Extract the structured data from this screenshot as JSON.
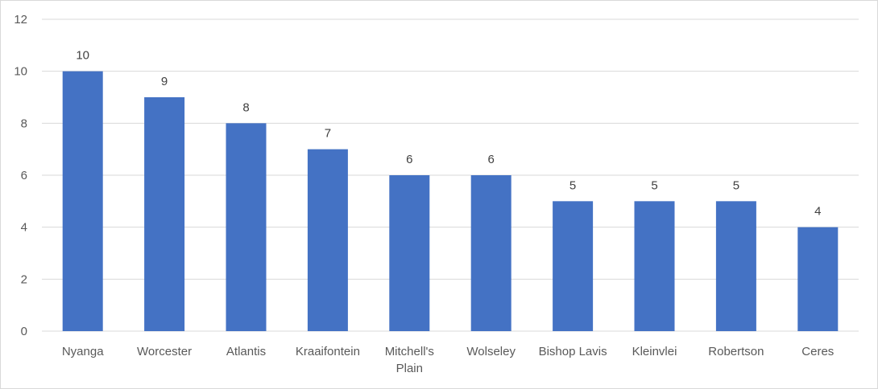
{
  "chart_data": {
    "type": "bar",
    "title": "",
    "xlabel": "",
    "ylabel": "",
    "categories": [
      "Nyanga",
      "Worcester",
      "Atlantis",
      "Kraaifontein",
      "Mitchell's Plain",
      "Wolseley",
      "Bishop Lavis",
      "Kleinvlei",
      "Robertson",
      "Ceres"
    ],
    "category_lines": [
      [
        "Nyanga"
      ],
      [
        "Worcester"
      ],
      [
        "Atlantis"
      ],
      [
        "Kraaifontein"
      ],
      [
        "Mitchell's",
        "Plain"
      ],
      [
        "Wolseley"
      ],
      [
        "Bishop Lavis"
      ],
      [
        "Kleinvlei"
      ],
      [
        "Robertson"
      ],
      [
        "Ceres"
      ]
    ],
    "values": [
      10,
      9,
      8,
      7,
      6,
      6,
      5,
      5,
      5,
      4
    ],
    "data_labels": [
      "10",
      "9",
      "8",
      "7",
      "6",
      "6",
      "5",
      "5",
      "5",
      "4"
    ],
    "ylim": [
      0,
      12
    ],
    "yticks": [
      "0",
      "2",
      "4",
      "6",
      "8",
      "10",
      "12"
    ],
    "grid": true,
    "legend": "none",
    "bar_color": "#4472c4",
    "grid_color": "#d9d9d9"
  }
}
